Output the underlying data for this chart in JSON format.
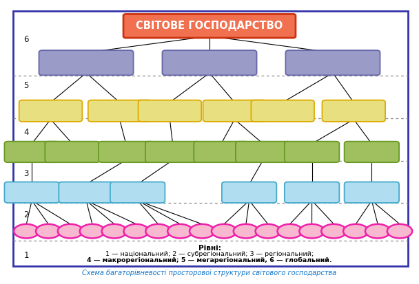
{
  "title": "СВІТОВЕ ГОСПОДАРСТВО",
  "title_border": "#cc3311",
  "title_bg": "#f07050",
  "bg_color": "#ffffff",
  "border_color": "#3333aa",
  "level_label_color": "#111111",
  "purple_color": "#9b9bc8",
  "purple_edge": "#6666aa",
  "yellow_color": "#e8e080",
  "yellow_edge": "#ddaa00",
  "green_color": "#a0c060",
  "green_edge": "#669922",
  "blue_color": "#b0ddf0",
  "blue_edge": "#44aacc",
  "pink_fill": "#f8b8d0",
  "pink_edge": "#ee22aa",
  "caption": "Схема багаторівневості просторової структури світового господарства",
  "caption_color": "#1177cc",
  "legend_title": "Рівні:",
  "legend_line1": "1 — національний; 2 — субрегіональний; 3 — регіональний;",
  "legend_line2": "4 — макрорегіональний; 5 — мегарегіональний, 6 — глобальний."
}
